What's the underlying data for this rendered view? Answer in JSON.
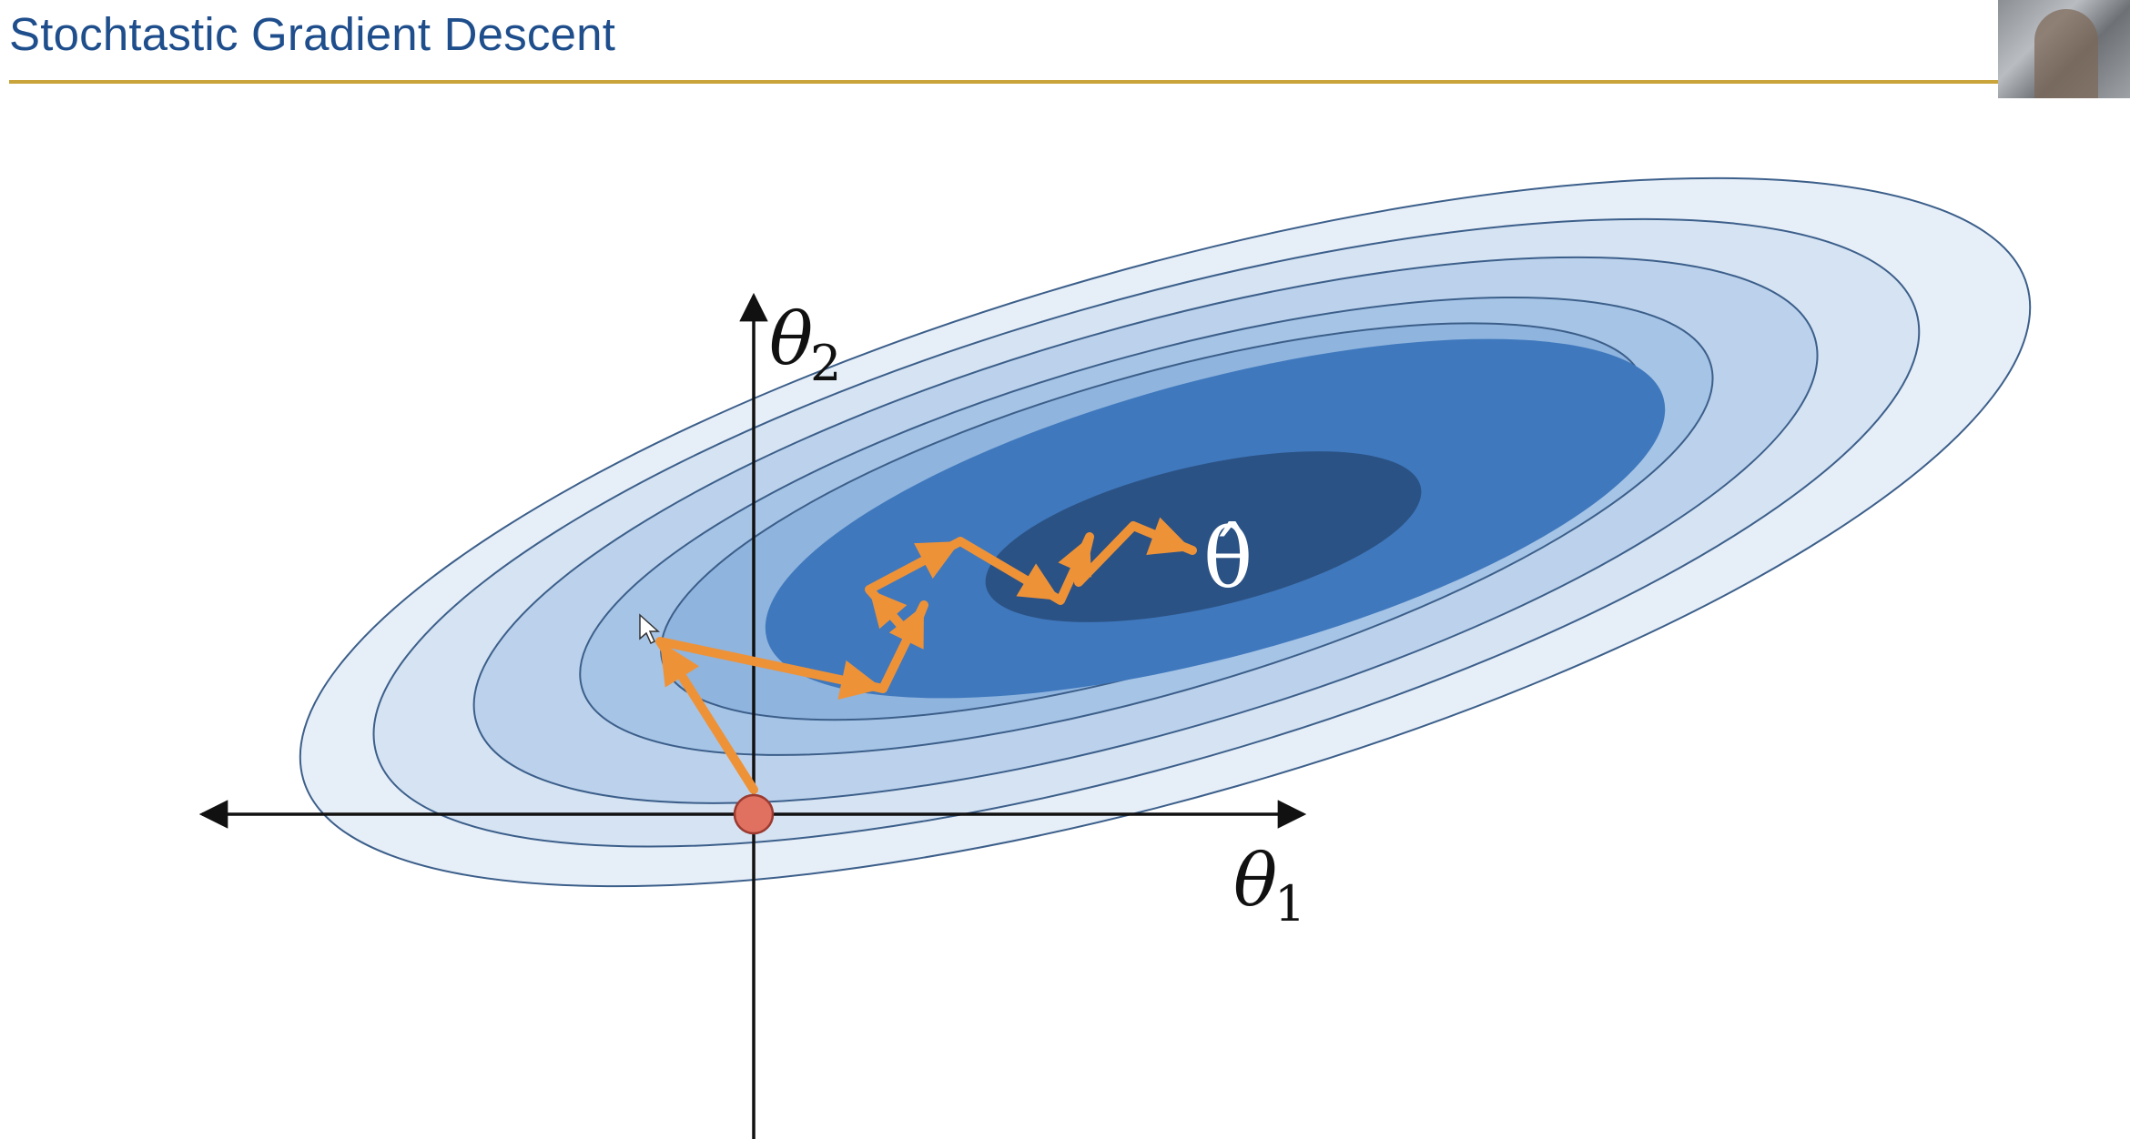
{
  "slide": {
    "title": "Stochtastic Gradient Descent"
  },
  "diagram": {
    "axes": {
      "x_label": "θ",
      "x_subscript": "1",
      "y_label": "θ",
      "y_subscript": "2"
    },
    "optimum_label": "θ̂",
    "colors": {
      "title": "#1f4e8c",
      "rule": "#c9a43a",
      "contour_outer": "#e6eef8",
      "contour_2": "#d5e3f3",
      "contour_3": "#bcd2ec",
      "contour_4": "#a6c4e6",
      "contour_5": "#8fb4de",
      "contour_inner": "#3f78bd",
      "contour_core": "#2b5284",
      "contour_stroke": "#3c5f8a",
      "path": "#ee9238",
      "start_point": "#e07060"
    }
  }
}
